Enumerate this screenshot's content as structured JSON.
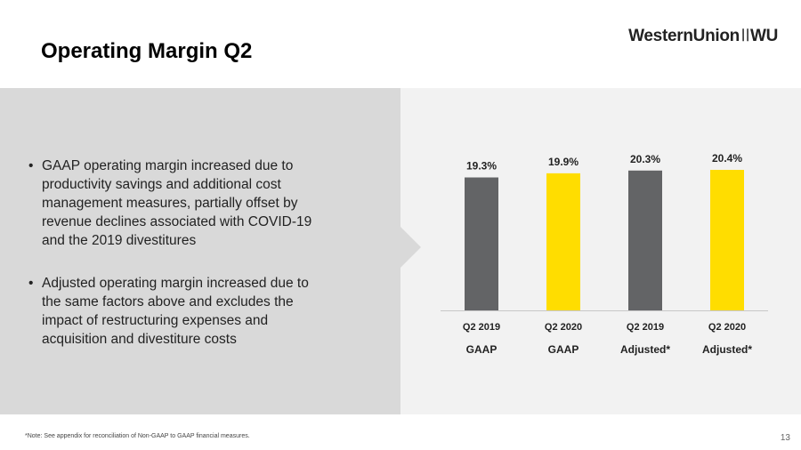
{
  "header": {
    "title": "Operating Margin Q2",
    "logo_text_left": "WesternUnion",
    "logo_text_right": "WU"
  },
  "bullets": [
    "GAAP operating margin increased due to productivity savings and additional cost management measures, partially offset by revenue declines associated with COVID-19 and the 2019 divestitures",
    "Adjusted operating margin increased due to the same factors above and excludes the impact of restructuring expenses and acquisition and divestiture costs"
  ],
  "chart_data": {
    "type": "bar",
    "categories": [
      "Q2 2019",
      "Q2 2020",
      "Q2 2019",
      "Q2 2020"
    ],
    "groups": [
      "GAAP",
      "GAAP",
      "Adjusted*",
      "Adjusted*"
    ],
    "values": [
      19.3,
      19.9,
      20.3,
      20.4
    ],
    "data_labels": [
      "19.3%",
      "19.9%",
      "20.3%",
      "20.4%"
    ],
    "colors": [
      "#636466",
      "#ffdd00",
      "#636466",
      "#ffdd00"
    ],
    "title": "",
    "xlabel": "",
    "ylabel": "",
    "grid": false,
    "ylim": [
      0,
      20.4
    ]
  },
  "footer": {
    "note": "*Note: See appendix for reconciliation of Non-GAAP to GAAP financial measures.",
    "page": "13"
  },
  "colors": {
    "panel_left": "#d9d9d9",
    "panel_right": "#f2f2f2",
    "dark_bar": "#636466",
    "yellow_bar": "#ffdd00"
  }
}
